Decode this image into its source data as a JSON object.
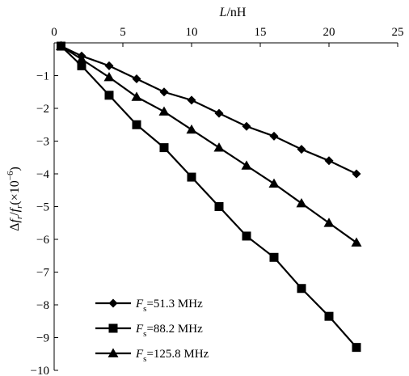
{
  "chart_data": {
    "type": "line",
    "x_label_var": "L",
    "x_label_unit": "/nH",
    "y_label": {
      "delta": "Δ",
      "f": "f",
      "sub_r": "r",
      "slash": "/",
      "open": "(×10",
      "exponent": "−6",
      "close": ")"
    },
    "xlim": [
      0,
      25
    ],
    "ylim": [
      -10,
      0
    ],
    "x_ticks": [
      "0",
      "5",
      "10",
      "15",
      "20",
      "25"
    ],
    "y_ticks": [
      "−1",
      "−2",
      "−3",
      "−4",
      "−5",
      "−6",
      "−7",
      "−8",
      "−9",
      "−10"
    ],
    "x_axis_position": "top",
    "grid": false,
    "legend_position": "bottom-left",
    "series": [
      {
        "var": "F",
        "sub": "s",
        "value_text": "=51.3 MHz",
        "marker": "diamond",
        "color": "#000000",
        "x": [
          0.5,
          2,
          4,
          6,
          8,
          10,
          12,
          14,
          16,
          18,
          20,
          22
        ],
        "y": [
          -0.1,
          -0.4,
          -0.7,
          -1.1,
          -1.5,
          -1.75,
          -2.15,
          -2.55,
          -2.85,
          -3.25,
          -3.6,
          -4.0
        ]
      },
      {
        "var": "F",
        "sub": "s",
        "value_text": "=88.2 MHz",
        "marker": "square",
        "color": "#000000",
        "x": [
          0.5,
          2,
          4,
          6,
          8,
          10,
          12,
          14,
          16,
          18,
          20,
          22
        ],
        "y": [
          -0.1,
          -0.7,
          -1.6,
          -2.5,
          -3.2,
          -4.1,
          -5.0,
          -5.9,
          -6.55,
          -7.5,
          -8.35,
          -9.3
        ]
      },
      {
        "var": "F",
        "sub": "s",
        "value_text": "=125.8 MHz",
        "marker": "triangle",
        "color": "#000000",
        "x": [
          0.5,
          2,
          4,
          6,
          8,
          10,
          12,
          14,
          16,
          18,
          20,
          22
        ],
        "y": [
          -0.1,
          -0.5,
          -1.05,
          -1.65,
          -2.1,
          -2.65,
          -3.2,
          -3.75,
          -4.3,
          -4.9,
          -5.5,
          -6.1
        ]
      }
    ]
  }
}
